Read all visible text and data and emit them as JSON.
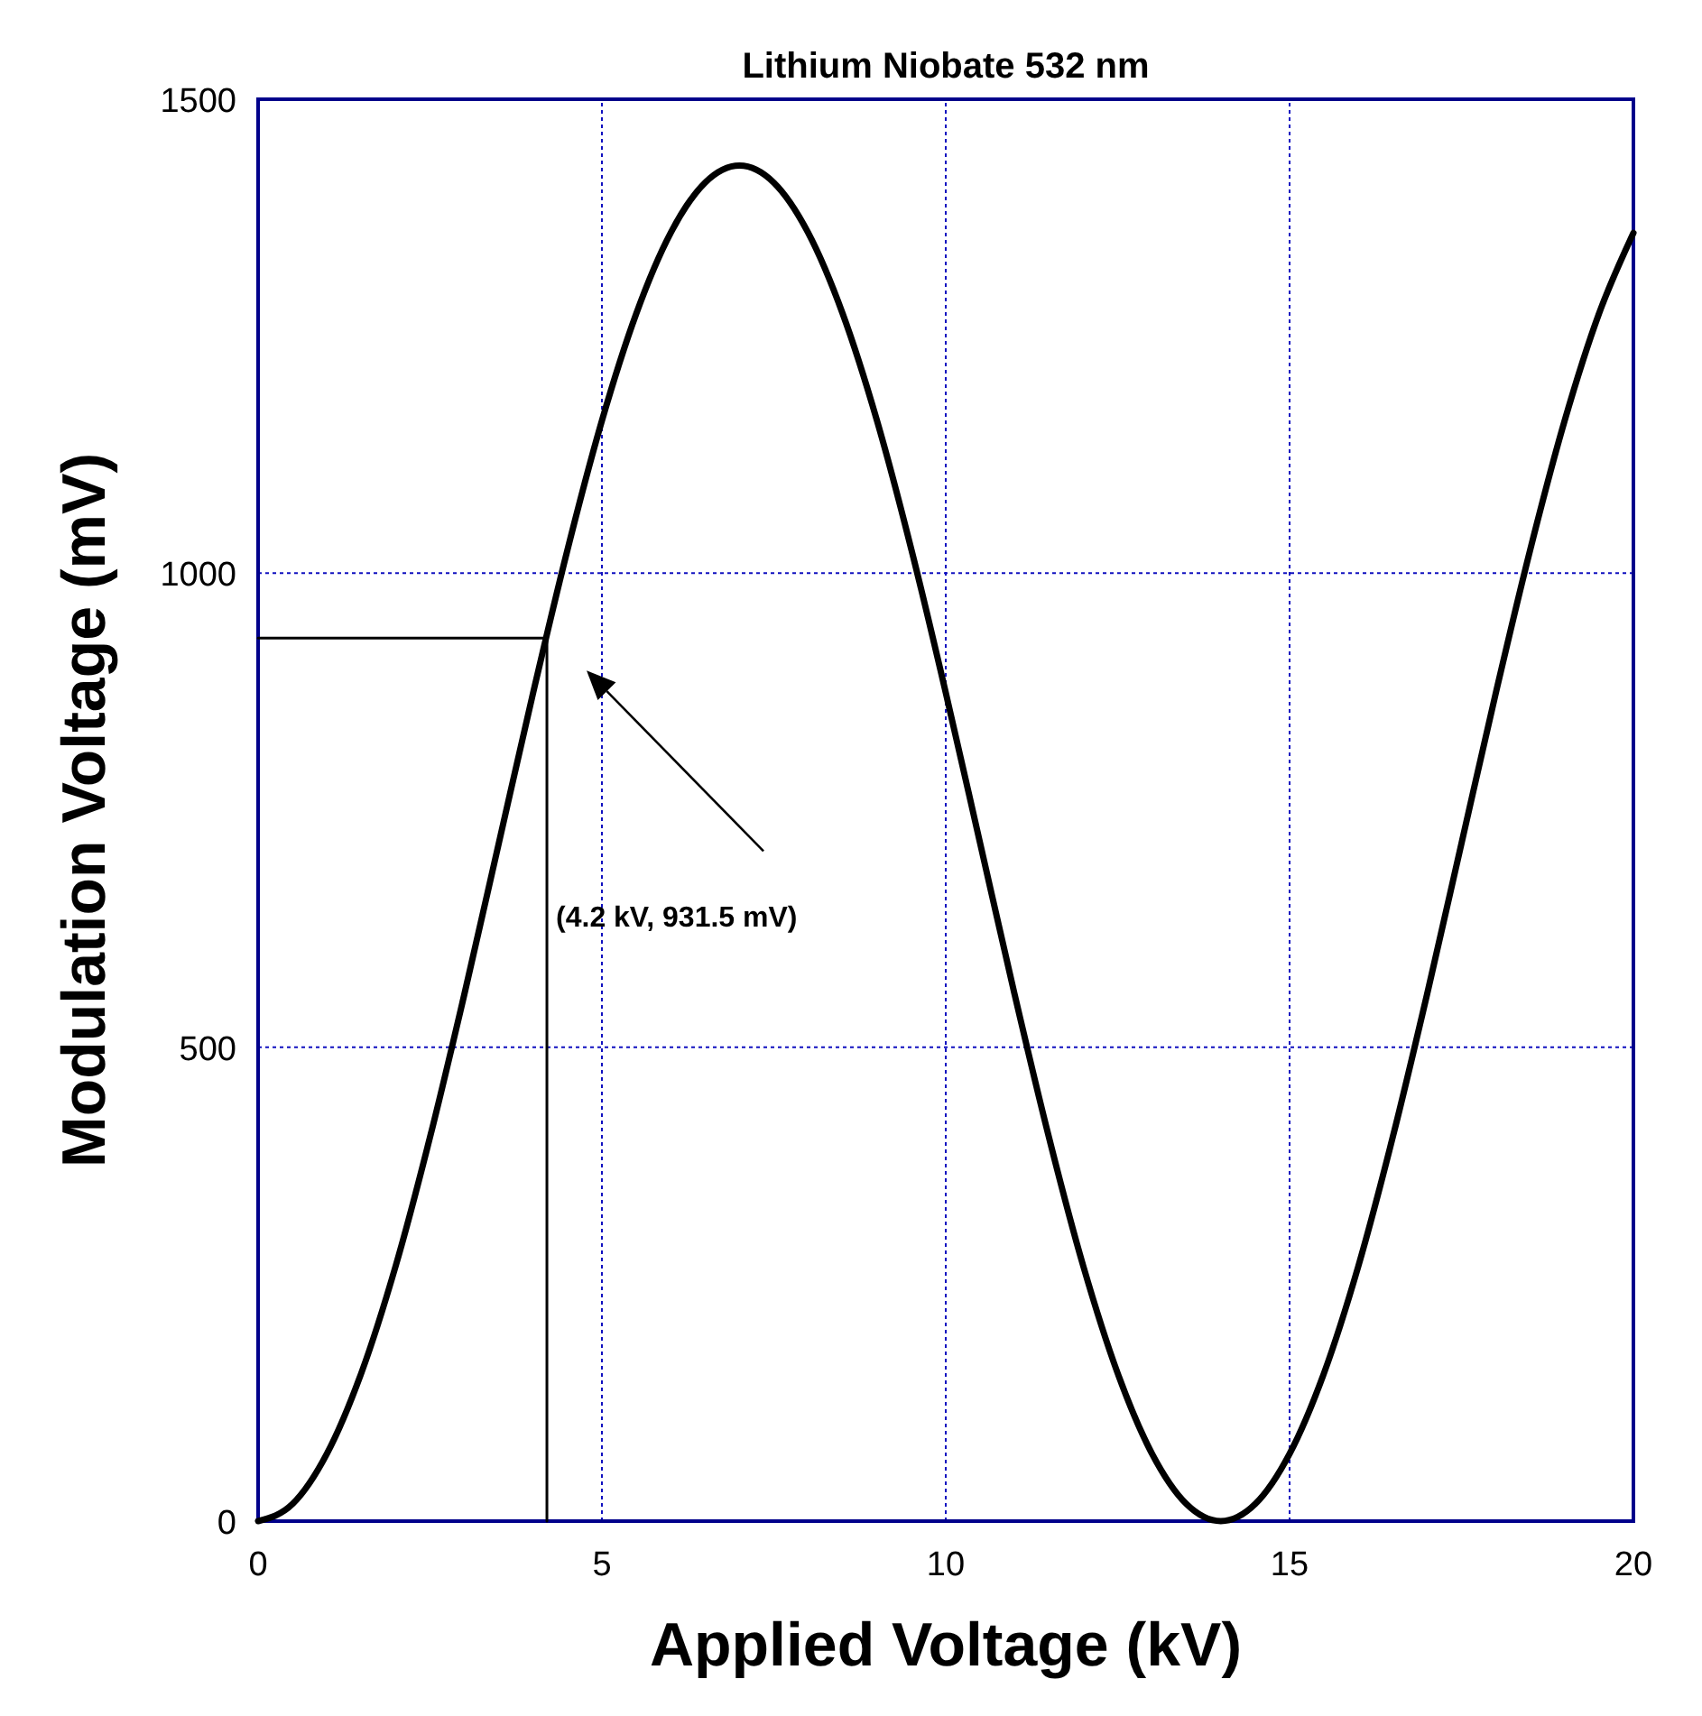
{
  "chart_data": {
    "type": "line",
    "title": "Lithium Niobate 532 nm",
    "xlabel": "Applied Voltage (kV)",
    "ylabel": "Modulation Voltage (mV)",
    "xlim": [
      0,
      20
    ],
    "ylim": [
      0,
      1500
    ],
    "xticks": [
      0,
      5,
      10,
      15,
      20
    ],
    "yticks": [
      0,
      500,
      1000,
      1500
    ],
    "grid": true,
    "line_style": "solid",
    "marker": "none",
    "series": [
      {
        "color": "#000000",
        "x": [
          0,
          0.5,
          1,
          1.5,
          2,
          2.5,
          3,
          3.5,
          4,
          4.5,
          5,
          5.5,
          6,
          6.5,
          7,
          7.5,
          8,
          8.5,
          9,
          9.5,
          10,
          10.5,
          11,
          11.5,
          12,
          12.5,
          13,
          13.5,
          14,
          14.5,
          15,
          15.5,
          16,
          16.5,
          17,
          17.5,
          18,
          18.5,
          19,
          19.5,
          20
        ],
        "values": [
          0,
          18,
          71,
          156,
          269,
          405,
          556,
          715,
          874,
          1025,
          1161,
          1274,
          1359,
          1412,
          1430,
          1412,
          1359,
          1274,
          1161,
          1025,
          874,
          715,
          556,
          405,
          269,
          156,
          71,
          18,
          0,
          18,
          71,
          156,
          269,
          405,
          556,
          715,
          874,
          1025,
          1161,
          1274,
          1359
        ]
      },
      {
        "color": "#000000",
        "x": [
          0,
          4.2,
          4.2
        ],
        "values": [
          931.5,
          931.5,
          0
        ]
      }
    ],
    "annotations": [
      "(4.2 kV, 931.5 mV)"
    ]
  }
}
